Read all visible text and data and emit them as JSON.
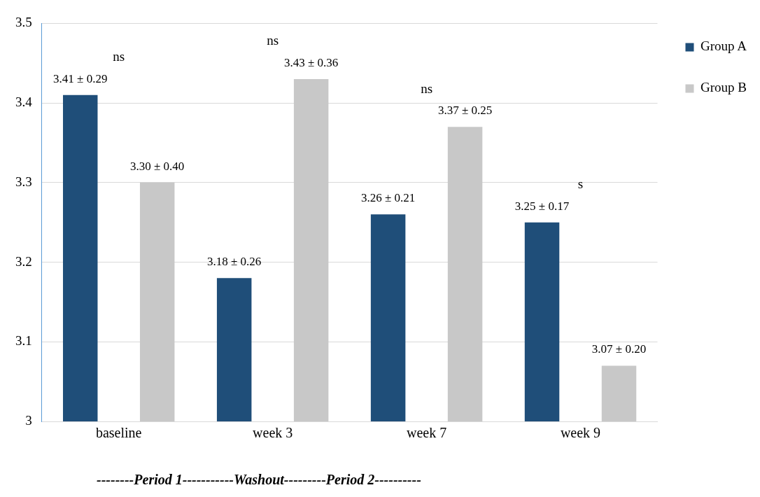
{
  "chart_data": {
    "type": "bar",
    "categories": [
      "baseline",
      "week 3",
      "week 7",
      "week 9"
    ],
    "series": [
      {
        "name": "Group A",
        "color": "#1f4e79",
        "values": [
          3.41,
          3.18,
          3.26,
          3.25
        ],
        "value_labels": [
          "3.41 ± 0.29",
          "3.18 ± 0.26",
          "3.26 ± 0.21",
          "3.25 ± 0.17"
        ]
      },
      {
        "name": "Group B",
        "color": "#c8c8c8",
        "values": [
          3.3,
          3.43,
          3.37,
          3.07
        ],
        "value_labels": [
          "3.30 ± 0.40",
          "3.43 ± 0.36",
          "3.37 ± 0.25",
          "3.07 ± 0.20"
        ]
      }
    ],
    "ylim": [
      3,
      3.5
    ],
    "yticks": [
      3,
      3.1,
      3.2,
      3.3,
      3.4,
      3.5
    ],
    "grid": "y",
    "legend": "right",
    "annotations": [
      "ns",
      "ns",
      "ns",
      "s",
      "--------Period 1-----------Washout---------Period 2----------"
    ]
  }
}
